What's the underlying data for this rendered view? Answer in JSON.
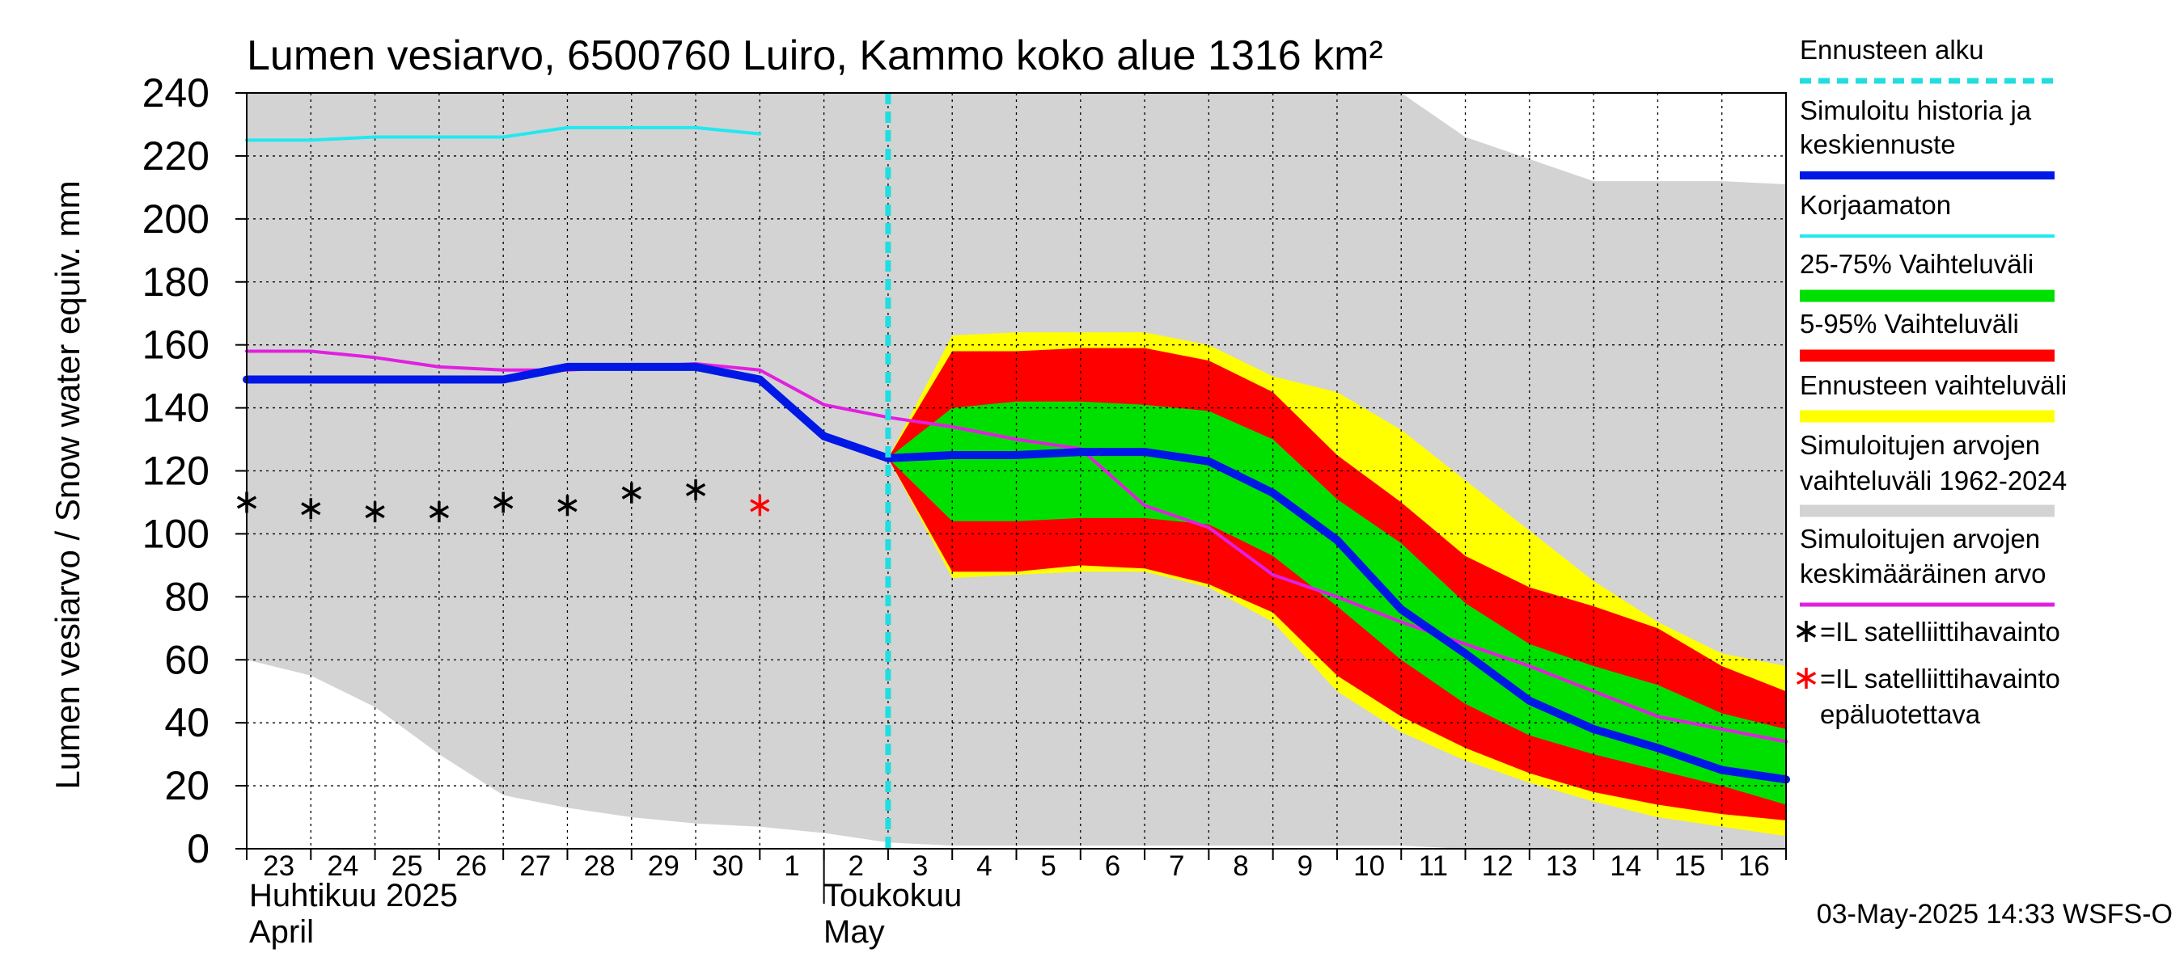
{
  "chart_data": {
    "type": "area",
    "title": "Lumen vesiarvo, 6500760 Luiro, Kammo koko alue 1316 km²",
    "ylabel": "Lumen vesiarvo / Snow water equiv.    mm",
    "ylim": [
      0,
      240
    ],
    "yticks": [
      0,
      20,
      40,
      60,
      80,
      100,
      120,
      140,
      160,
      180,
      200,
      220,
      240
    ],
    "x_day_range": [
      -9,
      15
    ],
    "x_tick_labels": [
      "23",
      "24",
      "25",
      "26",
      "27",
      "28",
      "29",
      "30",
      "1",
      "2",
      "3",
      "4",
      "5",
      "6",
      "7",
      "8",
      "9",
      "10",
      "11",
      "12",
      "13",
      "14",
      "15",
      "16"
    ],
    "month_labels": {
      "april_fi": "Huhtikuu  2025",
      "april_en": "April",
      "may_fi": "Toukokuu",
      "may_en": "May"
    },
    "forecast_start_day": 1,
    "timestamp": "03-May-2025 14:33 WSFS-O",
    "colors": {
      "forecast_start": "#22dde0",
      "simulated": "#0018e6",
      "uncorrected": "#22e8f0",
      "range_25_75": "#00e000",
      "range_5_95": "#ff0000",
      "forecast_range": "#ffff00",
      "historical_range": "#d3d3d3",
      "historical_mean": "#e020e0",
      "obs": "#000000",
      "obs_unreliable": "#ff0000"
    },
    "legend": [
      {
        "key": "forecast_start",
        "label": "Ennusteen alku",
        "style": "dash"
      },
      {
        "key": "simulated",
        "label": "Simuloitu historia ja\nkeskiennuste",
        "style": "thick"
      },
      {
        "key": "uncorrected",
        "label": "Korjaamaton",
        "style": "thin"
      },
      {
        "key": "range_25_75",
        "label": "25-75% Vaihteluväli",
        "style": "band"
      },
      {
        "key": "range_5_95",
        "label": "5-95% Vaihteluväli",
        "style": "band"
      },
      {
        "key": "forecast_range",
        "label": "Ennusteen vaihteluväli",
        "style": "band"
      },
      {
        "key": "historical_range",
        "label": "Simuloitujen arvojen\nvaihteluväli 1962-2024",
        "style": "band"
      },
      {
        "key": "historical_mean",
        "label": "Simuloitujen arvojen\nkeskimääräinen arvo",
        "style": "mid"
      },
      {
        "key": "obs",
        "label": "=IL satelliittihavainto",
        "style": "star"
      },
      {
        "key": "obs_unreliable",
        "label": "=IL satelliittihavainto\nepäluotettava",
        "style": "star"
      }
    ],
    "series": {
      "historical_range": {
        "x": [
          -9,
          -8,
          -7,
          -6,
          -5,
          -4,
          -3,
          -2,
          -1,
          0,
          1,
          2,
          3,
          4,
          5,
          6,
          7,
          8,
          9,
          10,
          11,
          12,
          13,
          14,
          15
        ],
        "lower": [
          60,
          55,
          45,
          30,
          17,
          13,
          10,
          8,
          7,
          5,
          2,
          1,
          1,
          1,
          1,
          1,
          1,
          1,
          1,
          0,
          0,
          0,
          0,
          0,
          0
        ],
        "upper": [
          240,
          240,
          240,
          240,
          240,
          240,
          240,
          240,
          240,
          240,
          240,
          240,
          240,
          240,
          240,
          240,
          240,
          240,
          240,
          226,
          219,
          212,
          212,
          212,
          211
        ]
      },
      "forecast_range": {
        "x": [
          1,
          2,
          3,
          4,
          5,
          6,
          7,
          8,
          9,
          10,
          11,
          12,
          13,
          14,
          15
        ],
        "lower": [
          124,
          86,
          87,
          88,
          88,
          83,
          72,
          50,
          37,
          28,
          21,
          15,
          10,
          7,
          4
        ],
        "upper": [
          124,
          163,
          164,
          164,
          164,
          160,
          150,
          145,
          133,
          117,
          101,
          85,
          72,
          62,
          58
        ]
      },
      "range_5_95": {
        "x": [
          1,
          2,
          3,
          4,
          5,
          6,
          7,
          8,
          9,
          10,
          11,
          12,
          13,
          14,
          15
        ],
        "lower": [
          124,
          88,
          88,
          90,
          89,
          84,
          75,
          55,
          42,
          32,
          24,
          18,
          14,
          11,
          9
        ],
        "upper": [
          124,
          158,
          158,
          159,
          159,
          155,
          145,
          125,
          110,
          93,
          83,
          77,
          70,
          58,
          50
        ]
      },
      "range_25_75": {
        "x": [
          1,
          2,
          3,
          4,
          5,
          6,
          7,
          8,
          9,
          10,
          11,
          12,
          13,
          14,
          15
        ],
        "lower": [
          124,
          104,
          104,
          105,
          105,
          103,
          93,
          77,
          60,
          46,
          36,
          30,
          25,
          20,
          14
        ],
        "upper": [
          124,
          140,
          142,
          142,
          141,
          139,
          130,
          111,
          97,
          78,
          65,
          58,
          52,
          43,
          38
        ]
      },
      "uncorrected": {
        "x": [
          -9,
          -8,
          -7,
          -6,
          -5,
          -4,
          -3,
          -2,
          -1
        ],
        "y": [
          225,
          225,
          226,
          226,
          226,
          229,
          229,
          229,
          227
        ]
      },
      "simulated": {
        "x": [
          -9,
          -8,
          -7,
          -6,
          -5,
          -4,
          -3,
          -2,
          -1,
          0,
          1,
          2,
          3,
          4,
          5,
          6,
          7,
          8,
          9,
          10,
          11,
          12,
          13,
          14,
          15
        ],
        "y": [
          149,
          149,
          149,
          149,
          149,
          153,
          153,
          153,
          149,
          131,
          124,
          125,
          125,
          126,
          126,
          123,
          113,
          98,
          76,
          62,
          47,
          38,
          32,
          25,
          22
        ]
      },
      "historical_mean": {
        "x": [
          -9,
          -8,
          -7,
          -6,
          -5,
          -4,
          -3,
          -2,
          -1,
          0,
          1,
          2,
          3,
          4,
          5,
          6,
          7,
          8,
          9,
          10,
          11,
          12,
          13,
          14,
          15
        ],
        "y": [
          158,
          158,
          156,
          153,
          152,
          152,
          153,
          154,
          152,
          141,
          137,
          134,
          130,
          127,
          109,
          102,
          87,
          80,
          72,
          65,
          58,
          50,
          42,
          38,
          34
        ]
      },
      "obs": {
        "x": [
          -9,
          -8,
          -7,
          -6,
          -5,
          -4,
          -3,
          -2
        ],
        "y": [
          110,
          108,
          107,
          107,
          110,
          109,
          113,
          114
        ]
      },
      "obs_unreliable": {
        "x": [
          -1
        ],
        "y": [
          109
        ]
      }
    }
  }
}
